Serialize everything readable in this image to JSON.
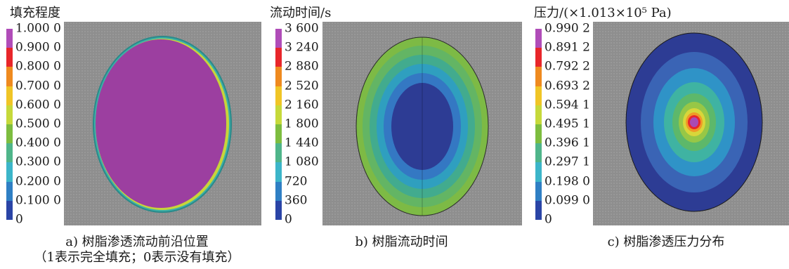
{
  "panels": [
    {
      "title": "填充程度",
      "ticks": [
        "1.000 0",
        "0.900 0",
        "0.800 0",
        "0.700 0",
        "0.600 0",
        "0.500 0",
        "0.400 0",
        "0.300 0",
        "0.200 0",
        "0.100 0",
        "0"
      ],
      "caption": "a) 树脂渗透流动前沿位置",
      "caption_note": "（1表示完全填充；0表示没有填充）"
    },
    {
      "title": "流动时间/s",
      "ticks": [
        "3 600",
        "3 240",
        "2 880",
        "2 520",
        "2 160",
        "1 800",
        "1 440",
        "1 080",
        "720",
        "360",
        "0"
      ],
      "caption": "b) 树脂流动时间"
    },
    {
      "title": "压力/(×1.013×10⁵ Pa)",
      "ticks": [
        "0.990 2",
        "0.891 2",
        "0.792 2",
        "0.693 2",
        "0.594 1",
        "0.495 1",
        "0.396 1",
        "0.297 1",
        "0.198 0",
        "0.099 0",
        "0"
      ],
      "caption": "c) 树脂渗透压力分布"
    }
  ],
  "colors": {
    "scale": [
      "#b04cb8",
      "#e8262a",
      "#ef8a1f",
      "#f0c526",
      "#c6d93a",
      "#7dbd3f",
      "#4fb58a",
      "#3cb5c9",
      "#2f7fc4",
      "#2a44a6"
    ],
    "plot_background": "#8e8e8e",
    "fill_purple": "#9c3fa0",
    "time_center": "#2d3c94"
  }
}
